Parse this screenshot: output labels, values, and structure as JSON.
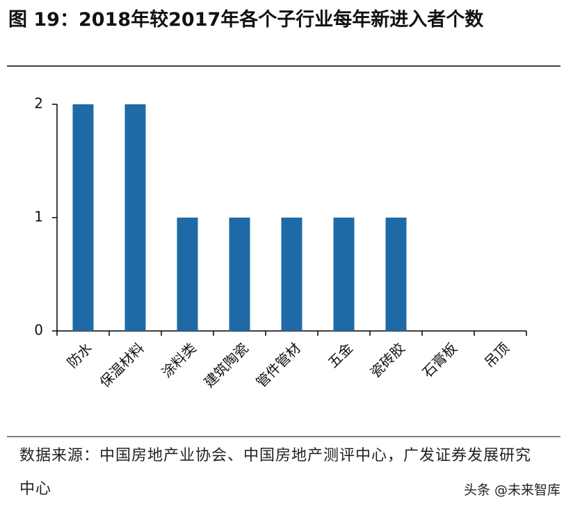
{
  "chart_data": {
    "type": "bar",
    "title": "图 19：2018年较2017年各个子行业每年新进入者个数",
    "categories": [
      "防水",
      "保温材料",
      "涂料类",
      "建筑陶瓷",
      "管件管材",
      "五金",
      "瓷砖胶",
      "石膏板",
      "吊顶"
    ],
    "values": [
      2,
      2,
      1,
      1,
      1,
      1,
      1,
      0,
      0
    ],
    "color": "#1f6aa6",
    "ylim": [
      0,
      2
    ],
    "yticks": [
      0,
      1,
      2
    ],
    "grid": false,
    "source": "数据来源：中国房地产业协会、中国房地产测评中心，广发证券发展研究中心",
    "watermark": "头条 @未来智库"
  }
}
